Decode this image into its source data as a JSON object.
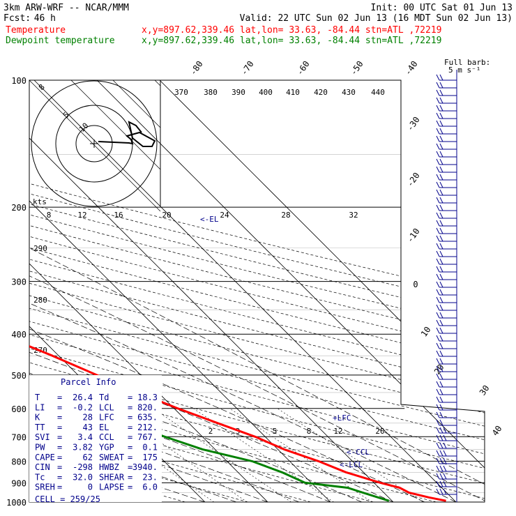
{
  "header": {
    "model": "3km ARW-WRF -- NCAR/MMM",
    "init": "Init: 00 UTC Sat 01 Jun 13",
    "fcst_label": "Fcst:",
    "fcst_value": "46 h",
    "valid": "Valid: 22 UTC Sun 02 Jun 13 (16 MDT Sun 02 Jun 13)",
    "legend": [
      {
        "name": "Temperature",
        "info": "x,y=897.62,339.46   lat,lon= 33.63, -84.44   stn=ATL ,72219",
        "color": "#ff0000"
      },
      {
        "name": "Dewpoint temperature",
        "info": "x,y=897.62,339.46   lat,lon= 33.63, -84.44   stn=ATL ,72219",
        "color": "#008000"
      }
    ]
  },
  "chart_data": {
    "type": "line",
    "diagram": "skew-T log-P",
    "pressure_ticks": [
      "100",
      "200",
      "300",
      "400",
      "500",
      "600",
      "700",
      "800",
      "900",
      "1000"
    ],
    "temperature_ticks": [
      "-80",
      "-70",
      "-60",
      "-50",
      "-40",
      "-30",
      "-20",
      "-10",
      "0",
      "10",
      "20",
      "30",
      "40"
    ],
    "theta_ticks": [
      "370",
      "380",
      "390",
      "400",
      "410",
      "420",
      "430",
      "440"
    ],
    "theta_left_ticks": [
      "290",
      "280",
      "270"
    ],
    "mixing_ratio_ticks": [
      "2",
      "3",
      "5",
      "8",
      "12",
      "20"
    ],
    "hodograph": {
      "units": "kts",
      "ring_labels": [
        "4",
        "8",
        "12",
        "16",
        "20",
        "24",
        "28",
        "32"
      ],
      "diag_labels": [
        "8",
        "5",
        "10"
      ]
    },
    "wind_legend": [
      "Full barb:",
      "5 m s⁻¹"
    ],
    "series": [
      {
        "name": "Temperature",
        "color": "#ff0000",
        "points": [
          [
            993,
            28.6
          ],
          [
            975,
            26.4
          ],
          [
            950,
            24.0
          ],
          [
            925,
            23.3
          ],
          [
            900,
            21.0
          ],
          [
            850,
            17.2
          ],
          [
            800,
            14.6
          ],
          [
            750,
            11.0
          ],
          [
            700,
            8.4
          ],
          [
            650,
            4.6
          ],
          [
            600,
            0.6
          ],
          [
            550,
            -3.2
          ],
          [
            500,
            -7.0
          ],
          [
            450,
            -11.0
          ],
          [
            400,
            -16.0
          ],
          [
            350,
            -23.0
          ],
          [
            300,
            -31.0
          ],
          [
            250,
            -40.5
          ],
          [
            200,
            -52.0
          ],
          [
            180,
            -58.0
          ],
          [
            150,
            -65.0
          ],
          [
            120,
            -68.0
          ],
          [
            100,
            -70.0
          ]
        ]
      },
      {
        "name": "Dewpoint temperature",
        "color": "#008000",
        "points": [
          [
            993,
            19.5
          ],
          [
            975,
            18.3
          ],
          [
            925,
            15.0
          ],
          [
            900,
            9.0
          ],
          [
            850,
            7.0
          ],
          [
            800,
            4.0
          ],
          [
            750,
            -2.0
          ],
          [
            700,
            -6.0
          ],
          [
            650,
            -10.0
          ],
          [
            600,
            -12.0
          ],
          [
            550,
            -17.0
          ],
          [
            500,
            -20.0
          ],
          [
            450,
            -23.0
          ],
          [
            400,
            -27.0
          ],
          [
            350,
            -37.0
          ],
          [
            320,
            -48.0
          ],
          [
            280,
            -55.0
          ],
          [
            260,
            -52.0
          ],
          [
            230,
            -58.0
          ],
          [
            200,
            -66.0
          ],
          [
            180,
            -75.0
          ],
          [
            150,
            -82.0
          ],
          [
            120,
            -85.0
          ],
          [
            100,
            -86.0
          ]
        ]
      }
    ],
    "annotations": [
      "<-EL",
      "+LFC",
      "<-CCL",
      "<-LCL"
    ]
  },
  "parcel_info": {
    "title": "Parcel Info",
    "rows": [
      [
        "T",
        "26.4",
        "Td",
        "18.3"
      ],
      [
        "LI",
        "-0.2",
        "LCL",
        "820."
      ],
      [
        "K",
        "28",
        "LFC",
        "635."
      ],
      [
        "TT",
        "43",
        "EL",
        "212."
      ],
      [
        "SVI",
        "3.4",
        "CCL",
        "767."
      ],
      [
        "PW",
        "3.82",
        "YGP",
        "0.1"
      ],
      [
        "CAPE",
        "62",
        "SWEAT",
        "175"
      ],
      [
        "CIN",
        "-298",
        "HWBZ",
        "3940."
      ],
      [
        "Tc",
        "32.0",
        "SHEAR",
        "23."
      ],
      [
        "SREH",
        "0",
        "LAPSE",
        "6.0"
      ]
    ],
    "cell_label": "CELL",
    "cell_value": "259/25"
  }
}
